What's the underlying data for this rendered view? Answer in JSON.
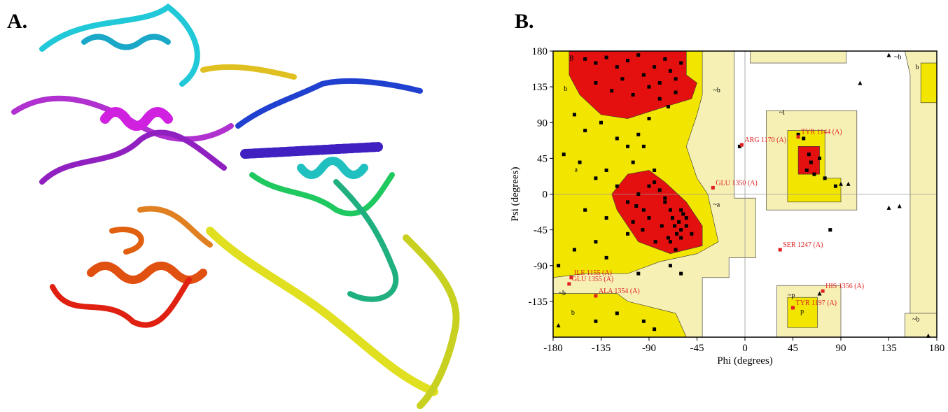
{
  "panel_labels": [
    "A.",
    "B."
  ],
  "chart_data": {
    "type": "scatter",
    "xlabel": "Phi (degrees)",
    "ylabel": "Psi (degrees)",
    "xlim": [
      -180,
      180
    ],
    "ylim": [
      -180,
      180
    ],
    "xticks": [
      -180,
      -135,
      -90,
      -45,
      0,
      45,
      90,
      135,
      180
    ],
    "yticks": [
      -135,
      -90,
      -45,
      0,
      45,
      90,
      135,
      180
    ],
    "zero_lines": true,
    "region_labels": [
      {
        "text": "B",
        "x": -165,
        "y": 168
      },
      {
        "text": "b",
        "x": -170,
        "y": 130
      },
      {
        "text": "a",
        "x": -160,
        "y": 28
      },
      {
        "text": "~b",
        "x": -30,
        "y": 128
      },
      {
        "text": "~a",
        "x": -30,
        "y": -16
      },
      {
        "text": "~l",
        "x": 32,
        "y": 100
      },
      {
        "text": "~b",
        "x": -175,
        "y": -127
      },
      {
        "text": "b",
        "x": -163,
        "y": -152
      },
      {
        "text": "~p",
        "x": 40,
        "y": -130
      },
      {
        "text": "p",
        "x": 52,
        "y": -150
      },
      {
        "text": "~b",
        "x": 140,
        "y": 170
      },
      {
        "text": "b",
        "x": 160,
        "y": 157
      },
      {
        "text": "~b",
        "x": 157,
        "y": -160
      }
    ],
    "points": {
      "color": "#000000",
      "x": [
        -150,
        -140,
        -130,
        -120,
        -110,
        -100,
        -95,
        -85,
        -80,
        -75,
        -70,
        -65,
        -60,
        -140,
        -125,
        -115,
        -105,
        -90,
        -80,
        -72,
        -65,
        -160,
        -150,
        -135,
        -120,
        -110,
        -100,
        -90,
        -170,
        -155,
        -140,
        -130,
        -120,
        -105,
        -95,
        -85,
        -150,
        -130,
        -110,
        -100,
        -90,
        -80,
        -75,
        -70,
        -68,
        -66,
        -64,
        -62,
        -60,
        -58,
        -72,
        -78,
        -84,
        -90,
        -96,
        -102,
        -70,
        -65,
        -60,
        -55,
        -75,
        -85,
        -95,
        -105,
        -110,
        -60,
        -55,
        -50,
        -140,
        -130,
        -160,
        -175,
        -100,
        -60,
        -140,
        -120,
        -95,
        -85,
        -70,
        50,
        55,
        60,
        62,
        58,
        65,
        70,
        75,
        85,
        80,
        -5
      ],
      "y": [
        170,
        165,
        172,
        160,
        168,
        175,
        150,
        160,
        140,
        170,
        155,
        145,
        165,
        140,
        130,
        145,
        125,
        135,
        120,
        110,
        128,
        100,
        80,
        90,
        70,
        60,
        75,
        95,
        50,
        40,
        20,
        30,
        10,
        40,
        60,
        30,
        -20,
        -30,
        -10,
        0,
        10,
        5,
        -10,
        -20,
        -30,
        -40,
        -50,
        -35,
        -45,
        -25,
        -55,
        -40,
        -60,
        -30,
        -45,
        -15,
        -60,
        -70,
        -55,
        -40,
        -5,
        15,
        -20,
        -35,
        -50,
        -20,
        -30,
        -50,
        -60,
        -80,
        -70,
        -90,
        -100,
        -100,
        -160,
        -150,
        -160,
        -170,
        -90,
        75,
        70,
        50,
        40,
        30,
        25,
        45,
        20,
        10,
        -45,
        60
      ]
    },
    "triangles": {
      "color": "#000000",
      "x": [
        135,
        108,
        97,
        90,
        135,
        145,
        70,
        -175,
        172
      ],
      "y": [
        175,
        140,
        13,
        13,
        -17,
        -15,
        -125,
        -165,
        -178
      ]
    },
    "outliers": {
      "color": "#e02020",
      "labels": [
        "TYR 1144 (A)",
        "ARG 1170 (A)",
        "GLU 1350 (A)",
        "SER 1247 (A)",
        "ILE 1155 (A)",
        "GLU 1355 (A)",
        "ALA 1354 (A)",
        "HIS 1356 (A)",
        "TYR 1197 (A)"
      ],
      "x": [
        50,
        -3,
        -30,
        33,
        -163,
        -165,
        -140,
        73,
        45
      ],
      "y": [
        72,
        62,
        8,
        -70,
        -105,
        -113,
        -128,
        -122,
        -143
      ]
    }
  }
}
